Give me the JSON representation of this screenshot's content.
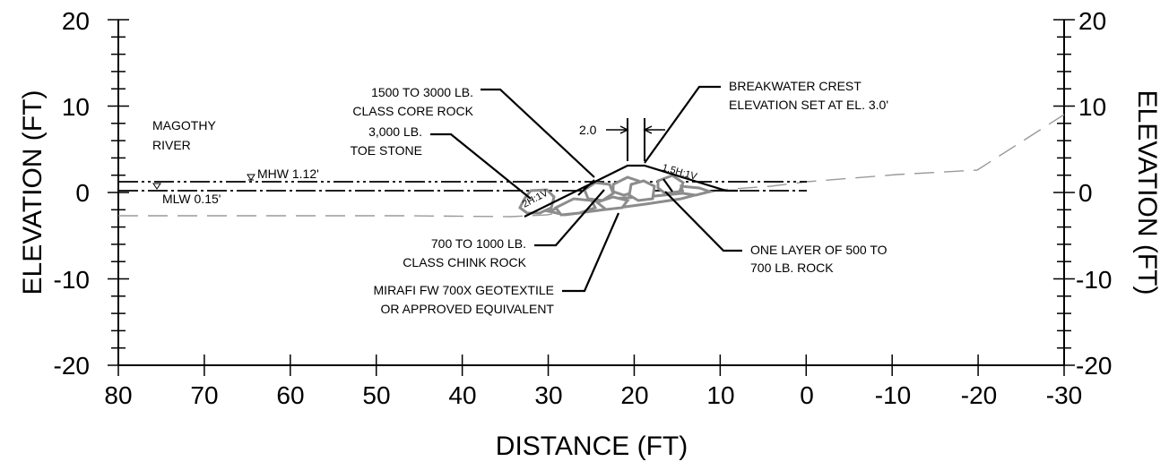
{
  "axes": {
    "x_title": "DISTANCE (FT)",
    "y_title_left": "ELEVATION (FT)",
    "y_title_right": "ELEVATION (FT)",
    "x_ticks": [
      "80",
      "70",
      "60",
      "50",
      "40",
      "30",
      "20",
      "10",
      "0",
      "-10",
      "-20",
      "-30"
    ],
    "y_ticks": [
      "20",
      "10",
      "0",
      "-10",
      "-20"
    ],
    "x_range": [
      80,
      -30
    ],
    "y_range": [
      -20,
      20
    ]
  },
  "labels": {
    "river_line1": "MAGOTHY",
    "river_line2": "RIVER",
    "mhw": "MHW  1.12'",
    "mlw": "MLW  0.15'",
    "core_rock_line1": "1500 TO 3000 LB.",
    "core_rock_line2": "CLASS CORE ROCK",
    "toe_stone_line1": "3,000 LB.",
    "toe_stone_line2": "TOE STONE",
    "crest_line1": "BREAKWATER CREST",
    "crest_line2": "ELEVATION SET AT EL. 3.0'",
    "crest_width": "2.0",
    "slope_left": "2H:1V",
    "slope_right": "1.5H:1V",
    "chink_line1": "700 TO 1000 LB.",
    "chink_line2": "CLASS CHINK ROCK",
    "geotextile_line1": "MIRAFI FW 700X GEOTEXTILE",
    "geotextile_line2": "OR APPROVED EQUIVALENT",
    "armor_line1": "ONE LAYER OF 500 TO",
    "armor_line2": "700 LB. ROCK"
  },
  "profile": {
    "mhw_elevation_ft": 1.12,
    "mlw_elevation_ft": 0.15,
    "crest_elevation_ft": 3.0,
    "crest_width_ft": 2.0,
    "slope_left": "2H:1V",
    "slope_right": "1.5H:1V"
  },
  "colors": {
    "line": "#000000",
    "existing_grade": "#9a9a9a",
    "rock": "#8c8c8c"
  }
}
